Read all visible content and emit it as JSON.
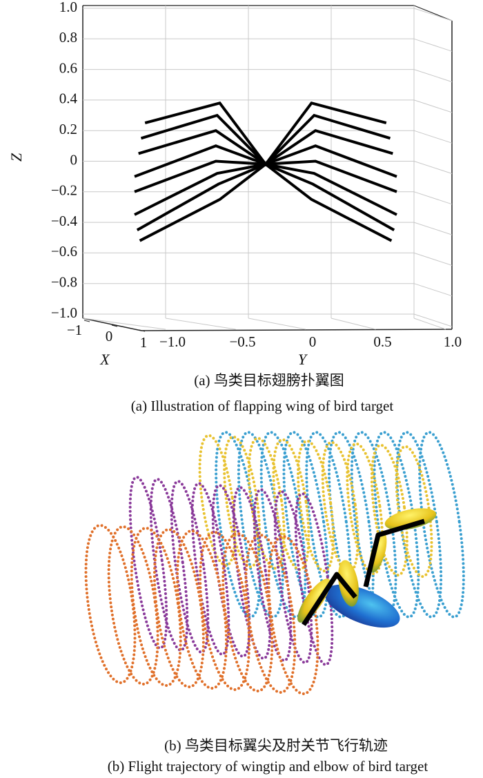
{
  "chart_data": {
    "type": "line",
    "projection": "3d",
    "xlabel": "X",
    "ylabel": "Y",
    "zlabel": "Z",
    "caption_cn": "(a) 鸟类目标翅膀扑翼图",
    "caption_en": "(a) Illustration of flapping wing of bird target",
    "xlim": [
      -1,
      1
    ],
    "xticks": [
      {
        "value": -1,
        "label": "−1"
      },
      0,
      1
    ],
    "ylim": [
      -1,
      1
    ],
    "yticks": [
      {
        "value": -1,
        "label": "−1.0"
      },
      {
        "value": -0.5,
        "label": "−0.5"
      },
      0,
      0.5,
      {
        "value": 1,
        "label": "1.0"
      }
    ],
    "zlim": [
      -1,
      1
    ],
    "zticks": [
      {
        "value": 1,
        "label": "1.0"
      },
      0.8,
      0.6,
      0.4,
      0.2,
      0,
      {
        "value": -0.2,
        "label": "−0.2"
      },
      {
        "value": -0.4,
        "label": "−0.4"
      },
      {
        "value": -0.6,
        "label": "−0.6"
      },
      {
        "value": -0.8,
        "label": "−0.8"
      },
      {
        "value": -1,
        "label": "−1.0"
      }
    ],
    "grid": true,
    "series": [
      {
        "color": "#000000",
        "y": [
          -0.92,
          -0.35,
          0,
          0.35,
          0.92
        ],
        "z": [
          0.25,
          0.38,
          -0.02,
          0.38,
          0.25
        ]
      },
      {
        "color": "#000000",
        "y": [
          -0.95,
          -0.37,
          0,
          0.37,
          0.95
        ],
        "z": [
          0.15,
          0.3,
          -0.02,
          0.3,
          0.15
        ]
      },
      {
        "color": "#000000",
        "y": [
          -0.97,
          -0.38,
          0,
          0.38,
          0.97
        ],
        "z": [
          0.05,
          0.2,
          -0.02,
          0.2,
          0.05
        ]
      },
      {
        "color": "#000000",
        "y": [
          -1.0,
          -0.38,
          0,
          0.38,
          1.0
        ],
        "z": [
          -0.1,
          0.1,
          -0.02,
          0.1,
          -0.1
        ]
      },
      {
        "color": "#000000",
        "y": [
          -1.0,
          -0.38,
          0,
          0.38,
          1.0
        ],
        "z": [
          -0.2,
          0.0,
          -0.02,
          0.0,
          -0.2
        ]
      },
      {
        "color": "#000000",
        "y": [
          -1.0,
          -0.37,
          0,
          0.37,
          1.0
        ],
        "z": [
          -0.35,
          -0.08,
          -0.02,
          -0.08,
          -0.35
        ]
      },
      {
        "color": "#000000",
        "y": [
          -0.98,
          -0.36,
          0,
          0.36,
          0.98
        ],
        "z": [
          -0.45,
          -0.15,
          -0.02,
          -0.15,
          -0.45
        ]
      },
      {
        "color": "#000000",
        "y": [
          -0.96,
          -0.35,
          0,
          0.35,
          0.96
        ],
        "z": [
          -0.52,
          -0.25,
          -0.02,
          -0.25,
          -0.52
        ]
      }
    ]
  },
  "figure_b": {
    "caption_cn": "(b) 鸟类目标翼尖及肘关节飞行轨迹",
    "caption_en": "(b) Flight trajectory of wingtip and elbow of bird target"
  }
}
